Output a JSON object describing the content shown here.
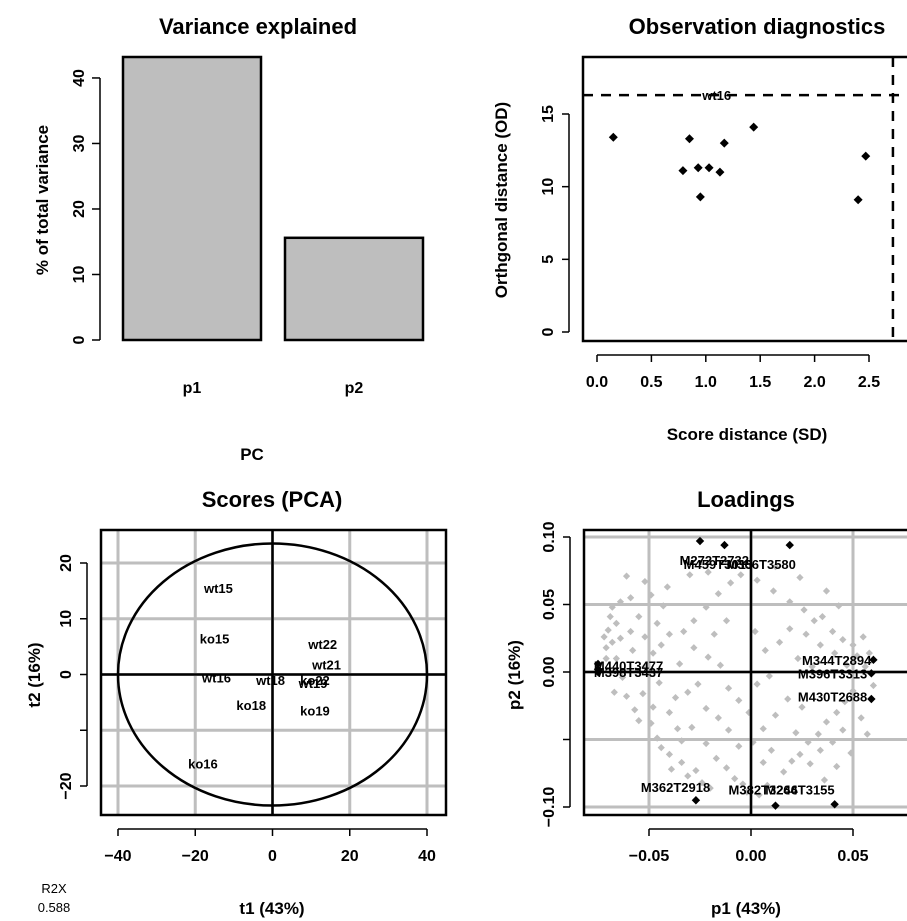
{
  "r2x": {
    "label": "R2X",
    "value": "0.588"
  },
  "chart_data": [
    {
      "id": "variance",
      "type": "bar",
      "title": "Variance explained",
      "xlabel": "PC",
      "ylabel": "% of total variance",
      "categories": [
        "p1",
        "p2"
      ],
      "values": [
        43.2,
        15.6
      ],
      "ylim": [
        0,
        43.2
      ],
      "yticks": [
        0,
        10,
        20,
        30,
        40
      ],
      "bar_color": "#bebebe"
    },
    {
      "id": "diagnostics",
      "type": "scatter",
      "title": "Observation diagnostics",
      "xlabel": "Score distance (SD)",
      "ylabel": "Orthgonal distance (OD)",
      "xlim": [
        -0.07,
        2.8
      ],
      "ylim": [
        -0.7,
        17.7
      ],
      "xticks": [
        "0.0",
        "0.5",
        "1.0",
        "1.5",
        "2.0",
        "2.5"
      ],
      "yticks": [
        0,
        5,
        10,
        15
      ],
      "od_threshold": 16.3,
      "sd_threshold": 2.72,
      "points": [
        {
          "x": 0.15,
          "y": 13.4
        },
        {
          "x": 0.79,
          "y": 11.1
        },
        {
          "x": 0.85,
          "y": 13.3
        },
        {
          "x": 0.93,
          "y": 11.3
        },
        {
          "x": 0.95,
          "y": 9.3
        },
        {
          "x": 1.03,
          "y": 11.3
        },
        {
          "x": 1.13,
          "y": 11.0
        },
        {
          "x": 1.17,
          "y": 13.0
        },
        {
          "x": 1.44,
          "y": 14.1
        },
        {
          "x": 2.4,
          "y": 9.1
        },
        {
          "x": 2.47,
          "y": 12.1
        },
        {
          "x": 1.1,
          "y": 16.3,
          "label": "wt16"
        }
      ]
    },
    {
      "id": "scores",
      "type": "scatter",
      "title": "Scores (PCA)",
      "xlabel": "t1 (43%)",
      "ylabel": "t2 (16%)",
      "xlim": [
        -40,
        41
      ],
      "ylim": [
        -26,
        26
      ],
      "xticks": [
        -40,
        -20,
        0,
        20,
        40
      ],
      "yticks": [
        -20,
        -10,
        0,
        10,
        20
      ],
      "ytick_labels": [
        -20,
        10,
        20
      ],
      "ytick_labels_extra": [
        "0"
      ],
      "grid": true,
      "ellipse": {
        "rx": 40,
        "ry": 23.5
      },
      "points": [
        {
          "x": -14,
          "y": 15.5,
          "label": "wt15"
        },
        {
          "x": -15,
          "y": 6.5,
          "label": "ko15"
        },
        {
          "x": 13,
          "y": 5.5,
          "label": "wt22"
        },
        {
          "x": 14,
          "y": 1.8,
          "label": "wt21"
        },
        {
          "x": -14.5,
          "y": -0.5,
          "label": "wt16"
        },
        {
          "x": -0.5,
          "y": -1.0,
          "label": "wt18"
        },
        {
          "x": 11,
          "y": -1.0,
          "label": "ko22"
        },
        {
          "x": 10.5,
          "y": -1.5,
          "label": "wt19"
        },
        {
          "x": -5.5,
          "y": -5.5,
          "label": "ko18"
        },
        {
          "x": 11,
          "y": -6.5,
          "label": "ko19"
        },
        {
          "x": -18,
          "y": -16,
          "label": "ko16"
        }
      ]
    },
    {
      "id": "loadings",
      "type": "scatter",
      "title": "Loadings",
      "xlabel": "p1 (43%)",
      "ylabel": "p2 (16%)",
      "xlim": [
        -0.078,
        0.062
      ],
      "ylim": [
        -0.106,
        0.106
      ],
      "xticks": [
        "-0.05",
        "0.00",
        "0.05"
      ],
      "yticks": [
        "-0.10",
        "0.00",
        "0.05",
        "0.10"
      ],
      "grid": true,
      "labels": [
        {
          "x": -0.018,
          "y": 0.083,
          "text": "M272T2732"
        },
        {
          "x": -0.016,
          "y": 0.08,
          "text": "M459T3015"
        },
        {
          "x": 0.005,
          "y": 0.08,
          "text": "M366T3580"
        },
        {
          "x": -0.06,
          "y": 0.005,
          "text": "M440T3477"
        },
        {
          "x": -0.06,
          "y": 0.0,
          "text": "M398T3437"
        },
        {
          "x": 0.042,
          "y": 0.009,
          "text": "M344T2894"
        },
        {
          "x": 0.04,
          "y": -0.001,
          "text": "M396T3313"
        },
        {
          "x": 0.04,
          "y": -0.018,
          "text": "M430T2688"
        },
        {
          "x": -0.037,
          "y": -0.085,
          "text": "M362T2918"
        },
        {
          "x": 0.006,
          "y": -0.087,
          "text": "M382T3246"
        },
        {
          "x": 0.024,
          "y": -0.087,
          "text": "M264T3155"
        }
      ],
      "highlight_points": [
        {
          "x": -0.025,
          "y": 0.097
        },
        {
          "x": -0.013,
          "y": 0.094
        },
        {
          "x": 0.019,
          "y": 0.094
        },
        {
          "x": -0.075,
          "y": 0.006
        },
        {
          "x": -0.075,
          "y": 0.002
        },
        {
          "x": -0.075,
          "y": 0.0
        },
        {
          "x": 0.06,
          "y": 0.009
        },
        {
          "x": 0.059,
          "y": -0.001
        },
        {
          "x": 0.059,
          "y": -0.02
        },
        {
          "x": -0.027,
          "y": -0.095
        },
        {
          "x": 0.012,
          "y": -0.099
        },
        {
          "x": 0.041,
          "y": -0.098
        }
      ],
      "grey_points": [
        [
          -0.061,
          0.071
        ],
        [
          -0.052,
          0.067
        ],
        [
          -0.059,
          0.055
        ],
        [
          -0.064,
          0.052
        ],
        [
          -0.049,
          0.057
        ],
        [
          -0.041,
          0.063
        ],
        [
          -0.043,
          0.049
        ],
        [
          -0.068,
          0.048
        ],
        [
          -0.069,
          0.041
        ],
        [
          -0.066,
          0.036
        ],
        [
          -0.07,
          0.031
        ],
        [
          -0.072,
          0.026
        ],
        [
          -0.068,
          0.022
        ],
        [
          -0.071,
          0.018
        ],
        [
          -0.064,
          0.025
        ],
        [
          -0.066,
          0.01
        ],
        [
          -0.071,
          0.01
        ],
        [
          -0.059,
          0.03
        ],
        [
          -0.055,
          0.041
        ],
        [
          -0.046,
          0.036
        ],
        [
          -0.052,
          0.026
        ],
        [
          -0.058,
          0.016
        ],
        [
          -0.063,
          -0.004
        ],
        [
          -0.067,
          -0.015
        ],
        [
          -0.061,
          -0.018
        ],
        [
          -0.057,
          -0.028
        ],
        [
          -0.055,
          -0.036
        ],
        [
          -0.049,
          -0.038
        ],
        [
          -0.046,
          -0.049
        ],
        [
          -0.044,
          -0.056
        ],
        [
          -0.04,
          -0.061
        ],
        [
          -0.039,
          -0.072
        ],
        [
          -0.034,
          -0.067
        ],
        [
          -0.031,
          -0.077
        ],
        [
          -0.027,
          -0.073
        ],
        [
          -0.024,
          -0.082
        ],
        [
          -0.02,
          -0.086
        ],
        [
          -0.034,
          -0.051
        ],
        [
          -0.029,
          -0.041
        ],
        [
          -0.022,
          -0.053
        ],
        [
          -0.017,
          -0.064
        ],
        [
          -0.012,
          -0.071
        ],
        [
          -0.008,
          -0.079
        ],
        [
          -0.004,
          -0.083
        ],
        [
          -0.002,
          -0.089
        ],
        [
          0.004,
          -0.091
        ],
        [
          0.008,
          -0.084
        ],
        [
          -0.037,
          -0.019
        ],
        [
          -0.031,
          -0.015
        ],
        [
          -0.026,
          -0.009
        ],
        [
          -0.022,
          -0.027
        ],
        [
          -0.016,
          -0.034
        ],
        [
          -0.011,
          -0.043
        ],
        [
          -0.006,
          -0.055
        ],
        [
          -0.035,
          0.006
        ],
        [
          -0.028,
          0.018
        ],
        [
          -0.021,
          0.011
        ],
        [
          -0.015,
          0.005
        ],
        [
          -0.028,
          0.038
        ],
        [
          -0.022,
          0.048
        ],
        [
          -0.016,
          0.058
        ],
        [
          -0.01,
          0.066
        ],
        [
          -0.005,
          0.072
        ],
        [
          -0.03,
          0.072
        ],
        [
          -0.021,
          0.074
        ],
        [
          0.003,
          0.068
        ],
        [
          0.011,
          0.06
        ],
        [
          0.019,
          0.052
        ],
        [
          0.026,
          0.046
        ],
        [
          0.031,
          0.038
        ],
        [
          0.035,
          0.041
        ],
        [
          0.04,
          0.03
        ],
        [
          0.045,
          0.024
        ],
        [
          0.05,
          0.02
        ],
        [
          0.055,
          0.026
        ],
        [
          0.052,
          0.012
        ],
        [
          0.047,
          0.005
        ],
        [
          0.041,
          0.014
        ],
        [
          0.034,
          0.02
        ],
        [
          0.027,
          0.028
        ],
        [
          0.019,
          0.032
        ],
        [
          0.014,
          0.022
        ],
        [
          0.007,
          0.016
        ],
        [
          0.002,
          0.03
        ],
        [
          0.023,
          0.01
        ],
        [
          0.03,
          0.004
        ],
        [
          0.05,
          -0.014
        ],
        [
          0.046,
          -0.022
        ],
        [
          0.042,
          -0.03
        ],
        [
          0.037,
          -0.037
        ],
        [
          0.033,
          -0.046
        ],
        [
          0.028,
          -0.052
        ],
        [
          0.024,
          -0.061
        ],
        [
          0.02,
          -0.066
        ],
        [
          0.016,
          -0.074
        ],
        [
          0.029,
          -0.068
        ],
        [
          0.034,
          -0.058
        ],
        [
          0.04,
          -0.052
        ],
        [
          0.045,
          -0.043
        ],
        [
          0.054,
          -0.034
        ],
        [
          0.057,
          -0.046
        ],
        [
          0.025,
          -0.026
        ],
        [
          0.018,
          -0.02
        ],
        [
          0.012,
          -0.032
        ],
        [
          0.006,
          -0.042
        ],
        [
          0.001,
          -0.052
        ],
        [
          0.01,
          -0.058
        ],
        [
          0.006,
          -0.067
        ],
        [
          -0.001,
          -0.03
        ],
        [
          -0.006,
          -0.021
        ],
        [
          -0.011,
          -0.012
        ],
        [
          0.003,
          -0.009
        ],
        [
          0.009,
          -0.003
        ],
        [
          -0.044,
          0.02
        ],
        [
          -0.04,
          0.028
        ],
        [
          -0.048,
          0.014
        ],
        [
          -0.052,
          0.004
        ],
        [
          -0.045,
          -0.008
        ],
        [
          -0.04,
          -0.03
        ],
        [
          -0.036,
          -0.042
        ],
        [
          -0.048,
          -0.026
        ],
        [
          -0.053,
          -0.016
        ],
        [
          0.037,
          0.06
        ],
        [
          0.024,
          0.07
        ],
        [
          0.012,
          0.078
        ],
        [
          0.043,
          0.049
        ],
        [
          0.056,
          0.004
        ],
        [
          0.058,
          0.014
        ],
        [
          0.06,
          -0.01
        ],
        [
          0.049,
          -0.06
        ],
        [
          0.042,
          -0.07
        ],
        [
          0.036,
          -0.08
        ],
        [
          0.022,
          -0.045
        ],
        [
          -0.018,
          0.028
        ],
        [
          -0.012,
          0.038
        ],
        [
          -0.033,
          0.03
        ]
      ]
    }
  ]
}
